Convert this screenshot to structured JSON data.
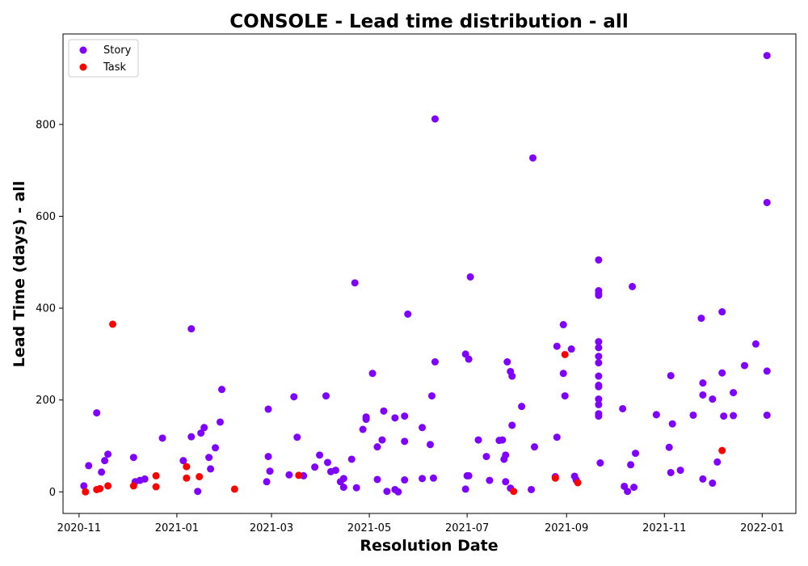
{
  "chart_data": {
    "type": "scatter",
    "title": "CONSOLE - Lead time distribution - all",
    "xlabel": "Resolution Date",
    "ylabel": "Lead Time (days) - all",
    "xlim": [
      "2020-10-22",
      "2022-01-22"
    ],
    "ylim": [
      -47,
      997
    ],
    "x_ticks": [
      "2020-11",
      "2021-01",
      "2021-03",
      "2021-05",
      "2021-07",
      "2021-09",
      "2021-11",
      "2022-01"
    ],
    "y_ticks": [
      0,
      200,
      400,
      600,
      800
    ],
    "grid": false,
    "legend_position": "upper-left",
    "series": [
      {
        "name": "Story",
        "color": "#8000ff",
        "points": [
          [
            "2020-11-04",
            13
          ],
          [
            "2020-11-07",
            57
          ],
          [
            "2020-11-12",
            172
          ],
          [
            "2020-11-15",
            43
          ],
          [
            "2020-11-17",
            68
          ],
          [
            "2020-11-19",
            82
          ],
          [
            "2020-12-05",
            75
          ],
          [
            "2020-12-06",
            22
          ],
          [
            "2020-12-09",
            25
          ],
          [
            "2020-12-12",
            28
          ],
          [
            "2020-12-23",
            117
          ],
          [
            "2021-01-05",
            68
          ],
          [
            "2021-01-10",
            355
          ],
          [
            "2021-01-10",
            120
          ],
          [
            "2021-01-14",
            1
          ],
          [
            "2021-01-16",
            128
          ],
          [
            "2021-01-18",
            140
          ],
          [
            "2021-01-21",
            75
          ],
          [
            "2021-01-22",
            50
          ],
          [
            "2021-01-25",
            96
          ],
          [
            "2021-01-28",
            152
          ],
          [
            "2021-01-29",
            223
          ],
          [
            "2021-02-26",
            22
          ],
          [
            "2021-02-27",
            180
          ],
          [
            "2021-02-27",
            77
          ],
          [
            "2021-02-28",
            45
          ],
          [
            "2021-03-12",
            37
          ],
          [
            "2021-03-15",
            207
          ],
          [
            "2021-03-17",
            119
          ],
          [
            "2021-03-21",
            35
          ],
          [
            "2021-03-28",
            54
          ],
          [
            "2021-03-31",
            80
          ],
          [
            "2021-04-04",
            209
          ],
          [
            "2021-04-05",
            64
          ],
          [
            "2021-04-07",
            44
          ],
          [
            "2021-04-10",
            47
          ],
          [
            "2021-04-13",
            22
          ],
          [
            "2021-04-15",
            10
          ],
          [
            "2021-04-15",
            29
          ],
          [
            "2021-04-20",
            71
          ],
          [
            "2021-04-22",
            455
          ],
          [
            "2021-04-23",
            9
          ],
          [
            "2021-04-27",
            136
          ],
          [
            "2021-04-29",
            158
          ],
          [
            "2021-04-29",
            163
          ],
          [
            "2021-05-03",
            258
          ],
          [
            "2021-05-06",
            98
          ],
          [
            "2021-05-06",
            27
          ],
          [
            "2021-05-09",
            113
          ],
          [
            "2021-05-10",
            176
          ],
          [
            "2021-05-12",
            1
          ],
          [
            "2021-05-17",
            161
          ],
          [
            "2021-05-17",
            5
          ],
          [
            "2021-05-19",
            0
          ],
          [
            "2021-05-23",
            110
          ],
          [
            "2021-05-23",
            165
          ],
          [
            "2021-05-23",
            26
          ],
          [
            "2021-05-25",
            387
          ],
          [
            "2021-06-03",
            140
          ],
          [
            "2021-06-03",
            29
          ],
          [
            "2021-06-08",
            103
          ],
          [
            "2021-06-09",
            209
          ],
          [
            "2021-06-10",
            30
          ],
          [
            "2021-06-11",
            812
          ],
          [
            "2021-06-11",
            283
          ],
          [
            "2021-06-30",
            300
          ],
          [
            "2021-06-30",
            6
          ],
          [
            "2021-07-01",
            35
          ],
          [
            "2021-07-02",
            35
          ],
          [
            "2021-07-02",
            289
          ],
          [
            "2021-07-03",
            468
          ],
          [
            "2021-07-08",
            113
          ],
          [
            "2021-07-13",
            77
          ],
          [
            "2021-07-15",
            25
          ],
          [
            "2021-07-21",
            112
          ],
          [
            "2021-07-23",
            113
          ],
          [
            "2021-07-24",
            71
          ],
          [
            "2021-07-25",
            22
          ],
          [
            "2021-07-25",
            80
          ],
          [
            "2021-07-26",
            283
          ],
          [
            "2021-07-28",
            262
          ],
          [
            "2021-07-28",
            8
          ],
          [
            "2021-07-29",
            252
          ],
          [
            "2021-07-29",
            145
          ],
          [
            "2021-08-04",
            186
          ],
          [
            "2021-08-10",
            5
          ],
          [
            "2021-08-11",
            727
          ],
          [
            "2021-08-12",
            98
          ],
          [
            "2021-08-25",
            33
          ],
          [
            "2021-08-26",
            317
          ],
          [
            "2021-08-26",
            119
          ],
          [
            "2021-08-30",
            364
          ],
          [
            "2021-08-30",
            258
          ],
          [
            "2021-08-31",
            209
          ],
          [
            "2021-09-04",
            311
          ],
          [
            "2021-09-06",
            34
          ],
          [
            "2021-09-07",
            26
          ],
          [
            "2021-09-21",
            505
          ],
          [
            "2021-09-21",
            438
          ],
          [
            "2021-09-21",
            432
          ],
          [
            "2021-09-21",
            428
          ],
          [
            "2021-09-21",
            327
          ],
          [
            "2021-09-21",
            314
          ],
          [
            "2021-09-21",
            295
          ],
          [
            "2021-09-21",
            281
          ],
          [
            "2021-09-21",
            252
          ],
          [
            "2021-09-21",
            232
          ],
          [
            "2021-09-21",
            229
          ],
          [
            "2021-09-21",
            202
          ],
          [
            "2021-09-21",
            190
          ],
          [
            "2021-09-21",
            170
          ],
          [
            "2021-09-21",
            165
          ],
          [
            "2021-09-22",
            63
          ],
          [
            "2021-10-06",
            181
          ],
          [
            "2021-10-07",
            12
          ],
          [
            "2021-10-09",
            1
          ],
          [
            "2021-10-11",
            59
          ],
          [
            "2021-10-12",
            447
          ],
          [
            "2021-10-13",
            10
          ],
          [
            "2021-10-14",
            84
          ],
          [
            "2021-10-27",
            168
          ],
          [
            "2021-10-27",
            168
          ],
          [
            "2021-11-04",
            97
          ],
          [
            "2021-11-05",
            253
          ],
          [
            "2021-11-05",
            42
          ],
          [
            "2021-11-06",
            148
          ],
          [
            "2021-11-11",
            47
          ],
          [
            "2021-11-19",
            167
          ],
          [
            "2021-11-24",
            378
          ],
          [
            "2021-11-25",
            211
          ],
          [
            "2021-11-25",
            237
          ],
          [
            "2021-11-25",
            28
          ],
          [
            "2021-12-01",
            202
          ],
          [
            "2021-12-01",
            19
          ],
          [
            "2021-12-04",
            65
          ],
          [
            "2021-12-07",
            392
          ],
          [
            "2021-12-07",
            259
          ],
          [
            "2021-12-08",
            165
          ],
          [
            "2021-12-14",
            216
          ],
          [
            "2021-12-14",
            166
          ],
          [
            "2021-12-21",
            275
          ],
          [
            "2021-12-28",
            322
          ],
          [
            "2022-01-04",
            950
          ],
          [
            "2022-01-04",
            630
          ],
          [
            "2022-01-04",
            263
          ],
          [
            "2022-01-04",
            167
          ]
        ]
      },
      {
        "name": "Task",
        "color": "#ff0000",
        "points": [
          [
            "2020-11-05",
            0
          ],
          [
            "2020-11-12",
            5
          ],
          [
            "2020-11-14",
            7
          ],
          [
            "2020-11-19",
            13
          ],
          [
            "2020-11-22",
            365
          ],
          [
            "2020-12-05",
            13
          ],
          [
            "2020-12-19",
            35
          ],
          [
            "2020-12-19",
            11
          ],
          [
            "2021-01-07",
            55
          ],
          [
            "2021-01-07",
            30
          ],
          [
            "2021-01-15",
            33
          ],
          [
            "2021-02-06",
            6
          ],
          [
            "2021-03-18",
            36
          ],
          [
            "2021-07-30",
            1
          ],
          [
            "2021-08-25",
            30
          ],
          [
            "2021-08-31",
            299
          ],
          [
            "2021-09-08",
            20
          ],
          [
            "2021-12-07",
            90
          ]
        ]
      }
    ]
  }
}
